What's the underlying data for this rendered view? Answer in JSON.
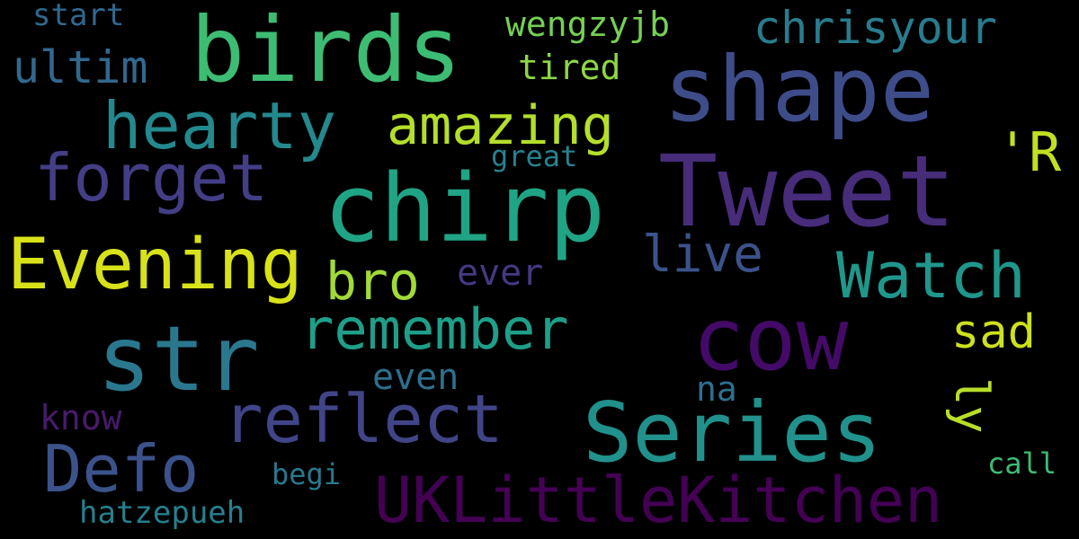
{
  "words": [
    {
      "text": "birds",
      "color": "#3dbc74",
      "vertical": false
    },
    {
      "text": "shape",
      "color": "#3e4c8a",
      "vertical": false
    },
    {
      "text": "chirp",
      "color": "#20a486",
      "vertical": false
    },
    {
      "text": "Tweet",
      "color": "#472c7a",
      "vertical": false
    },
    {
      "text": "Evening",
      "color": "#d8e219",
      "vertical": false
    },
    {
      "text": "cow",
      "color": "#440a68",
      "vertical": false
    },
    {
      "text": "str",
      "color": "#2a788e",
      "vertical": false
    },
    {
      "text": "Series",
      "color": "#21918c",
      "vertical": false
    },
    {
      "text": "hearty",
      "color": "#23898e",
      "vertical": false
    },
    {
      "text": "forget",
      "color": "#433e85",
      "vertical": false
    },
    {
      "text": "remember",
      "color": "#1f9e89",
      "vertical": false
    },
    {
      "text": "reflect",
      "color": "#414487",
      "vertical": false
    },
    {
      "text": "Watch",
      "color": "#1f978b",
      "vertical": false
    },
    {
      "text": "UKLittleKitchen",
      "color": "#440154",
      "vertical": false
    },
    {
      "text": "Defo",
      "color": "#3b528b",
      "vertical": false
    },
    {
      "text": "amazing",
      "color": "#b5de2b",
      "vertical": false
    },
    {
      "text": "chrisyour",
      "color": "#287c8e",
      "vertical": false
    },
    {
      "text": "'R",
      "color": "#c2df23",
      "vertical": false
    },
    {
      "text": "ultim",
      "color": "#31688e",
      "vertical": false
    },
    {
      "text": "bro",
      "color": "#a2da37",
      "vertical": false
    },
    {
      "text": "live",
      "color": "#3b528b",
      "vertical": false
    },
    {
      "text": "wengzyjb",
      "color": "#75d054",
      "vertical": false
    },
    {
      "text": "tired",
      "color": "#8ed645",
      "vertical": false
    },
    {
      "text": "sad",
      "color": "#cde11d",
      "vertical": false
    },
    {
      "text": "ly",
      "color": "#b8de29",
      "vertical": true
    },
    {
      "text": "ever",
      "color": "#443983",
      "vertical": false
    },
    {
      "text": "even",
      "color": "#2d708e",
      "vertical": false
    },
    {
      "text": "na",
      "color": "#2e6f8e",
      "vertical": false
    },
    {
      "text": "know",
      "color": "#481a6c",
      "vertical": false
    },
    {
      "text": "great",
      "color": "#26828e",
      "vertical": false
    },
    {
      "text": "start",
      "color": "#31688e",
      "vertical": false
    },
    {
      "text": "begi",
      "color": "#2a788e",
      "vertical": false
    },
    {
      "text": "call",
      "color": "#3dbc74",
      "vertical": false
    },
    {
      "text": "hatzepueh",
      "color": "#277f8e",
      "vertical": false
    }
  ]
}
